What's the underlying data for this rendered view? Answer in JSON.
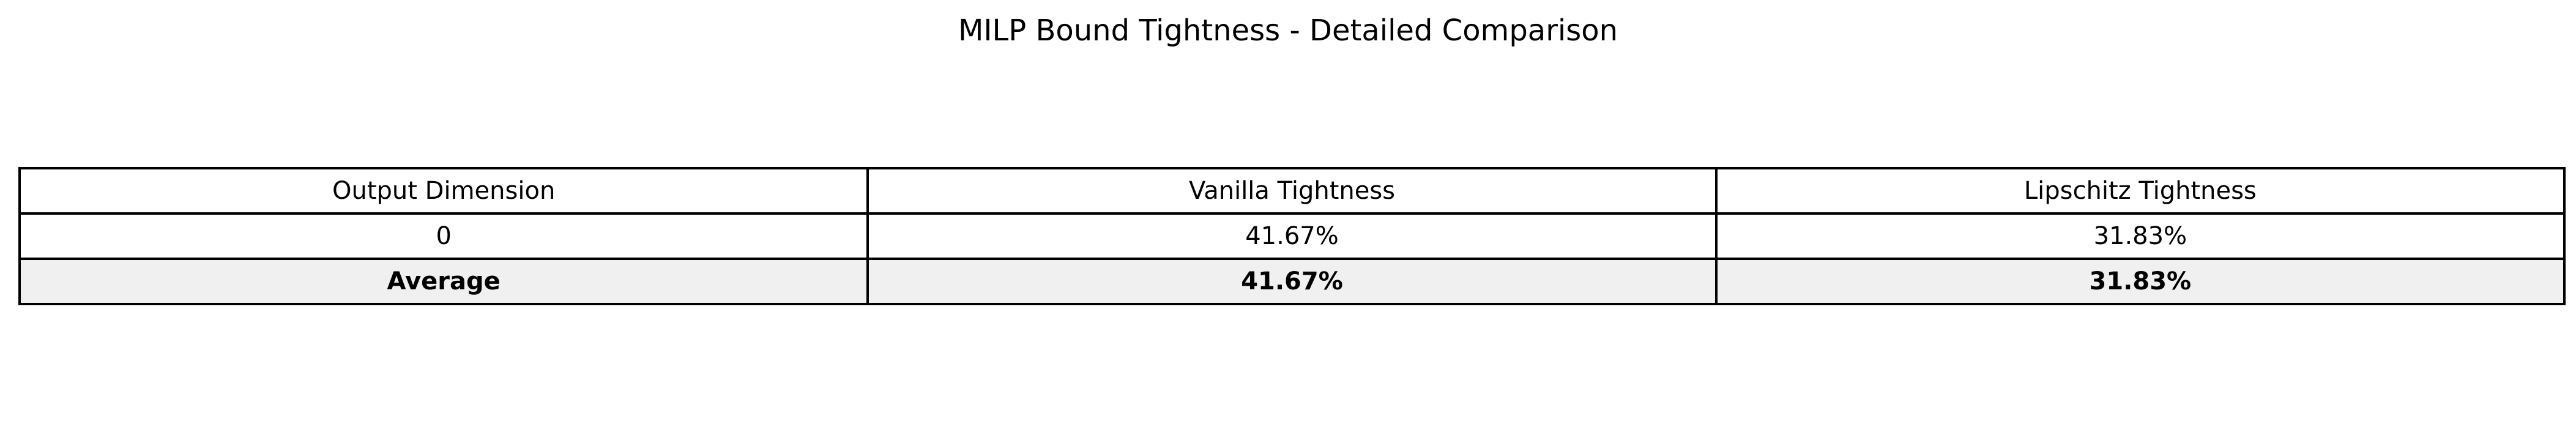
{
  "chart_data": {
    "type": "table",
    "title": "MILP Bound Tightness - Detailed Comparison",
    "columns": [
      "Output Dimension",
      "Vanilla Tightness",
      "Lipschitz Tightness"
    ],
    "rows": [
      [
        "0",
        "41.67%",
        "31.83%"
      ],
      [
        "Average",
        "41.67%",
        "31.83%"
      ]
    ],
    "row_values": [
      {
        "output_dimension": "0",
        "vanilla_tightness_pct": 41.67,
        "lipschitz_tightness_pct": 31.83
      },
      {
        "output_dimension": "Average",
        "vanilla_tightness_pct": 41.67,
        "lipschitz_tightness_pct": 31.83
      }
    ],
    "highlight": {
      "row": "Average",
      "style": "bold",
      "fill": "#f0f0f0"
    },
    "grid": true
  },
  "colors": {
    "border": "#000000",
    "background": "#ffffff",
    "highlight_fill": "#f0f0f0"
  }
}
